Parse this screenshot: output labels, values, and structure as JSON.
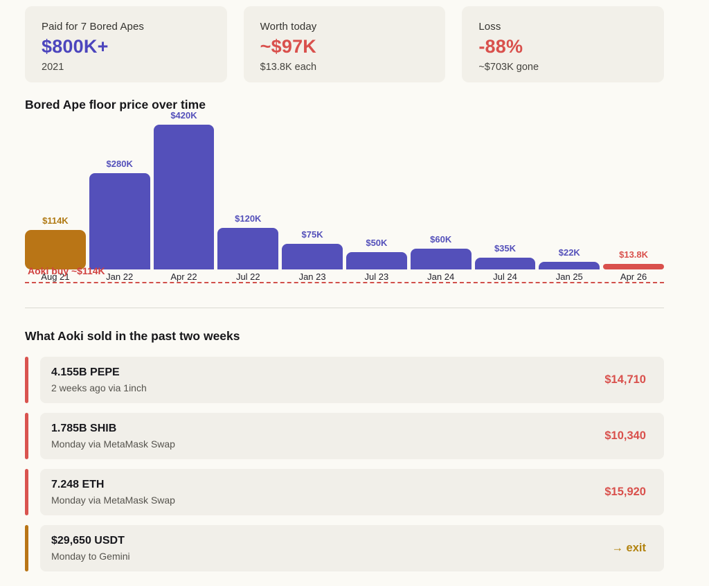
{
  "stats": [
    {
      "label": "Paid for 7 Bored Apes",
      "value": "$800K+",
      "sub": "2021",
      "value_color": "#4C45BD"
    },
    {
      "label": "Worth today",
      "value": "~$97K",
      "sub": "$13.8K each",
      "value_color": "#D9504C"
    },
    {
      "label": "Loss",
      "value": "-88%",
      "sub": "~$703K gone",
      "value_color": "#D9504C"
    }
  ],
  "chart": {
    "title": "Bored Ape floor price over time",
    "annotation": "Aoki buy ~$114K"
  },
  "chart_data": {
    "type": "bar",
    "title": "Bored Ape floor price over time",
    "categories": [
      "Aug 21",
      "Jan 22",
      "Apr 22",
      "Jul 22",
      "Jan 23",
      "Jul 23",
      "Jan 24",
      "Jul 24",
      "Jan 25",
      "Apr 26"
    ],
    "values": [
      114,
      280,
      420,
      120,
      75,
      50,
      60,
      35,
      22,
      13.8
    ],
    "value_labels": [
      "$114K",
      "$280K",
      "$420K",
      "$120K",
      "$75K",
      "$50K",
      "$60K",
      "$35K",
      "$22K",
      "$13.8K"
    ],
    "bar_colors": [
      "#B97516",
      "#5450BA",
      "#5450BA",
      "#5450BA",
      "#5450BA",
      "#5450BA",
      "#5450BA",
      "#5450BA",
      "#5450BA",
      "#D9504C"
    ],
    "label_colors": [
      "#B07A14",
      "#5450BA",
      "#5450BA",
      "#5450BA",
      "#5450BA",
      "#5450BA",
      "#5450BA",
      "#5450BA",
      "#5450BA",
      "#D9504C"
    ],
    "unit": "$K",
    "ylim": [
      0,
      420
    ],
    "grid": false,
    "annotation": {
      "text": "Aoki buy ~$114K",
      "style": "red-dashed-line-at-baseline",
      "color": "#D0413F"
    }
  },
  "sold": {
    "heading": "What Aoki sold in the past two weeks",
    "rows": [
      {
        "title": "4.155B PEPE",
        "sub": "2 weeks ago via 1inch",
        "value": "$14,710",
        "accent_color": "#D9534F",
        "value_color": "#D9504C",
        "is_link": false
      },
      {
        "title": "1.785B SHIB",
        "sub": "Monday via MetaMask Swap",
        "value": "$10,340",
        "accent_color": "#D9534F",
        "value_color": "#D9504C",
        "is_link": false
      },
      {
        "title": "7.248 ETH",
        "sub": "Monday via MetaMask Swap",
        "value": "$15,920",
        "accent_color": "#D9534F",
        "value_color": "#D9504C",
        "is_link": false
      },
      {
        "title": "$29,650 USDT",
        "sub": "Monday to Gemini",
        "value": "→ exit",
        "accent_color": "#B97516",
        "value_color": "#B2830F",
        "is_link": true
      }
    ]
  }
}
